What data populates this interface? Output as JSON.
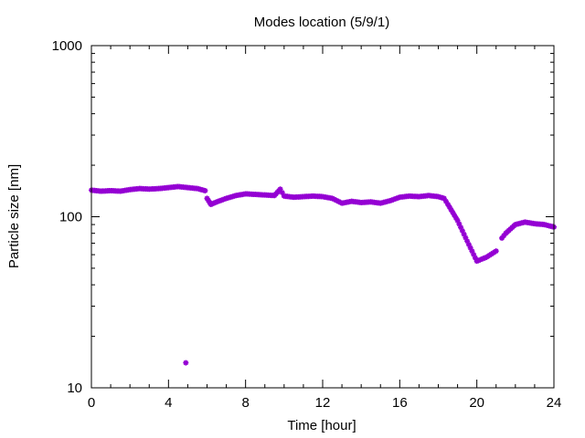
{
  "chart_data": {
    "type": "scatter",
    "title": "Modes location (5/9/1)",
    "xlabel": "Time [hour]",
    "ylabel": "Particle size [nm]",
    "xlim": [
      0,
      24
    ],
    "ylim": [
      10,
      1000
    ],
    "yscale": "log",
    "x_ticks": [
      0,
      4,
      8,
      12,
      16,
      20,
      24
    ],
    "x_tick_labels": [
      "0",
      "4",
      "8",
      "12",
      "16",
      "20",
      "24"
    ],
    "y_ticks": [
      10,
      100,
      1000
    ],
    "y_tick_labels": [
      "10",
      "100",
      "1000"
    ],
    "grid": false,
    "legend": "none",
    "marker_color": "#9400d3",
    "marker": "star",
    "series": [
      {
        "color": "#9400d3",
        "points": [
          [
            0.0,
            143
          ],
          [
            0.5,
            141
          ],
          [
            1.0,
            142
          ],
          [
            1.5,
            141
          ],
          [
            2.0,
            144
          ],
          [
            2.5,
            146
          ],
          [
            3.0,
            145
          ],
          [
            3.5,
            146
          ],
          [
            4.0,
            148
          ],
          [
            4.5,
            150
          ],
          [
            5.0,
            148
          ],
          [
            5.5,
            146
          ],
          [
            5.9,
            142
          ],
          [
            6.0,
            128
          ],
          [
            6.2,
            118
          ],
          [
            6.5,
            122
          ],
          [
            7.0,
            128
          ],
          [
            7.5,
            133
          ],
          [
            8.0,
            136
          ],
          [
            8.5,
            135
          ],
          [
            9.0,
            134
          ],
          [
            9.5,
            133
          ],
          [
            9.8,
            145
          ],
          [
            10.0,
            132
          ],
          [
            10.5,
            130
          ],
          [
            11.0,
            131
          ],
          [
            11.5,
            132
          ],
          [
            12.0,
            131
          ],
          [
            12.5,
            128
          ],
          [
            13.0,
            120
          ],
          [
            13.5,
            123
          ],
          [
            14.0,
            121
          ],
          [
            14.5,
            122
          ],
          [
            15.0,
            120
          ],
          [
            15.5,
            124
          ],
          [
            16.0,
            130
          ],
          [
            16.5,
            132
          ],
          [
            17.0,
            131
          ],
          [
            17.5,
            133
          ],
          [
            18.0,
            131
          ],
          [
            18.3,
            128
          ],
          [
            18.5,
            118
          ],
          [
            19.0,
            95
          ],
          [
            19.5,
            72
          ],
          [
            20.0,
            55
          ],
          [
            20.5,
            58
          ],
          [
            21.0,
            63
          ],
          [
            21.3,
            75
          ],
          [
            21.5,
            80
          ],
          [
            22.0,
            90
          ],
          [
            22.5,
            93
          ],
          [
            23.0,
            91
          ],
          [
            23.5,
            90
          ],
          [
            24.0,
            87
          ],
          [
            4.9,
            14
          ]
        ]
      }
    ]
  }
}
